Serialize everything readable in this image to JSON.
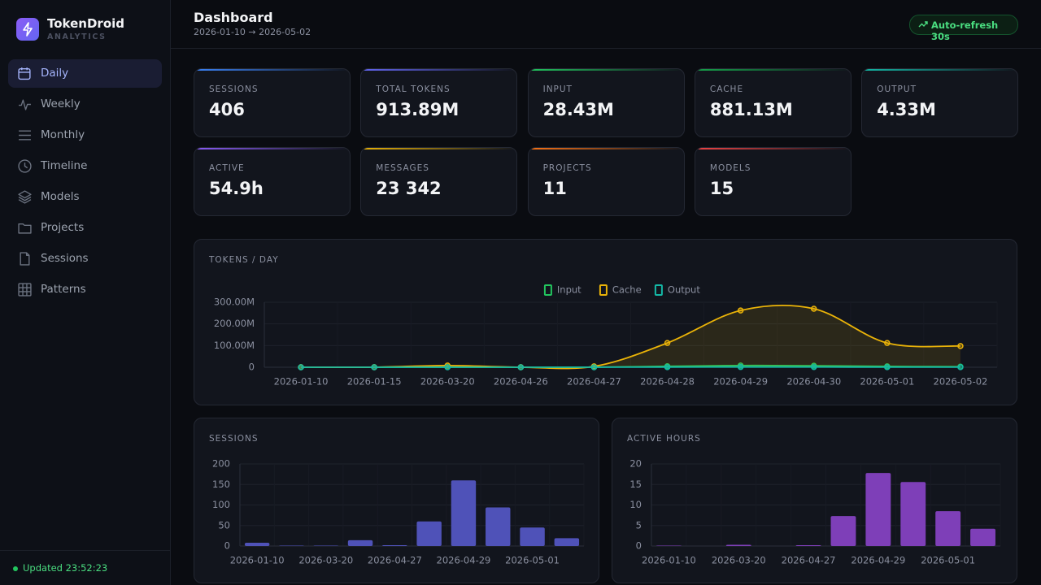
{
  "sidebar": {
    "brand": "TokenDroid",
    "subtitle": "ANALYTICS",
    "nav": [
      "Daily",
      "Weekly",
      "Monthly",
      "Timeline",
      "Models",
      "Projects",
      "Sessions",
      "Patterns"
    ],
    "status": "Updated 23:52:23"
  },
  "header": {
    "title": "Dashboard",
    "range": "2026-01-10 → 2026-05-02",
    "refresh": "Auto-refresh 30s"
  },
  "stats": [
    {
      "label": "SESSIONS",
      "value": "406"
    },
    {
      "label": "TOTAL TOKENS",
      "value": "913.89M"
    },
    {
      "label": "INPUT",
      "value": "28.43M"
    },
    {
      "label": "CACHE",
      "value": "881.13M"
    },
    {
      "label": "OUTPUT",
      "value": "4.33M"
    },
    {
      "label": "ACTIVE",
      "value": "54.9h"
    },
    {
      "label": "MESSAGES",
      "value": "23 342"
    },
    {
      "label": "PROJECTS",
      "value": "11"
    },
    {
      "label": "MODELS",
      "value": "15"
    }
  ],
  "chart_data": [
    {
      "type": "line",
      "title": "TOKENS / DAY",
      "categories": [
        "2026-01-10",
        "2026-01-15",
        "2026-03-20",
        "2026-04-26",
        "2026-04-27",
        "2026-04-28",
        "2026-04-29",
        "2026-04-30",
        "2026-05-01",
        "2026-05-02"
      ],
      "series": [
        {
          "name": "Input",
          "color": "#22c55e",
          "values": [
            100000,
            300000,
            1200000,
            100000,
            500000,
            4500000,
            8000000,
            7000000,
            4000000,
            2700000
          ]
        },
        {
          "name": "Cache",
          "color": "#eab308",
          "values": [
            500000,
            300000,
            8000000,
            300000,
            4000000,
            112000000,
            262000000,
            270000000,
            112000000,
            98000000
          ]
        },
        {
          "name": "Output",
          "color": "#14b8a6",
          "values": [
            50000,
            80000,
            200000,
            50000,
            150000,
            700000,
            1200000,
            1000000,
            500000,
            400000
          ]
        }
      ],
      "ylim": [
        0,
        300000000
      ],
      "yticks": [
        0,
        {
          "value": 100000000,
          "label": "100.00M"
        },
        {
          "value": 200000000,
          "label": "200.00M"
        },
        {
          "value": 300000000,
          "label": "300.00M"
        }
      ],
      "grid": true,
      "legend": "top"
    },
    {
      "type": "bar",
      "title": "SESSIONS",
      "categories": [
        "2026-01-10",
        null,
        "2026-03-20",
        null,
        "2026-04-27",
        null,
        "2026-04-29",
        null,
        "2026-05-01",
        null
      ],
      "values": [
        8,
        1,
        1,
        14,
        2,
        60,
        160,
        94,
        45,
        19
      ],
      "color": "#4f52b8",
      "ylim": [
        0,
        200
      ],
      "yticks": [
        0,
        50,
        100,
        150,
        200
      ],
      "grid": true
    },
    {
      "type": "bar",
      "title": "ACTIVE HOURS",
      "categories": [
        "2026-01-10",
        null,
        "2026-03-20",
        null,
        "2026-04-27",
        null,
        "2026-04-29",
        null,
        "2026-05-01",
        null
      ],
      "values": [
        0.1,
        0,
        0.3,
        0,
        0.2,
        7.3,
        17.8,
        15.6,
        8.5,
        4.2
      ],
      "color": "#7e3fb8",
      "ylim": [
        0,
        20
      ],
      "yticks": [
        0,
        5,
        10,
        15,
        20
      ],
      "grid": true
    }
  ]
}
